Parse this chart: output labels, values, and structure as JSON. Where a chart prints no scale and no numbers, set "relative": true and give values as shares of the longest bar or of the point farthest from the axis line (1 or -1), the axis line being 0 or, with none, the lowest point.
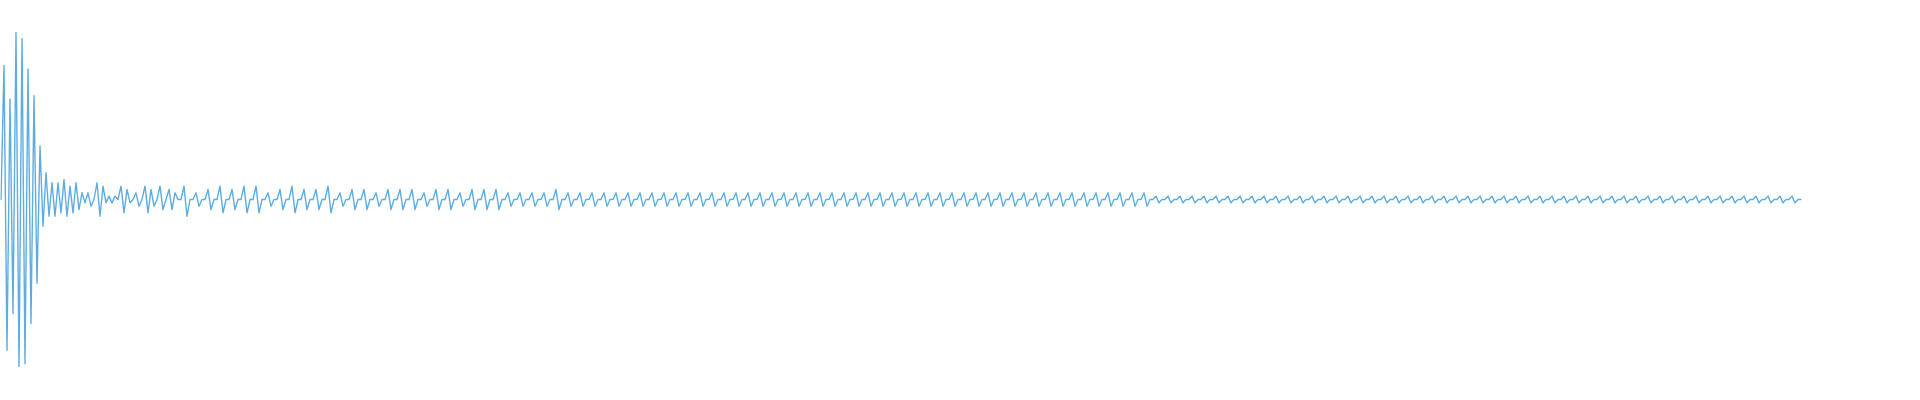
{
  "chart_data": {
    "type": "line",
    "relative": true,
    "marker": "none",
    "color": "#5dade2",
    "categories": [
      null,
      null,
      null,
      null,
      null,
      null,
      null,
      null,
      null,
      null,
      null,
      null,
      null,
      null,
      null,
      null,
      null,
      null,
      null,
      null,
      null,
      null,
      null,
      null,
      null,
      null,
      null,
      null,
      null,
      null,
      null,
      null,
      null,
      null,
      null,
      null,
      null,
      null,
      null,
      null,
      null,
      null,
      null,
      null,
      null,
      null,
      null,
      null,
      null,
      null,
      null,
      null,
      null,
      null,
      null,
      null,
      null,
      null,
      null,
      null,
      null,
      null,
      null,
      null,
      null,
      null,
      null,
      null,
      null,
      null,
      null,
      null,
      null,
      null,
      null,
      null,
      null,
      null,
      null,
      null,
      null,
      null,
      null,
      null,
      null,
      null,
      null,
      null,
      null,
      null,
      null,
      null,
      null,
      null,
      null,
      null,
      null,
      null,
      null,
      null,
      null,
      null,
      null,
      null,
      null,
      null,
      null,
      null,
      null,
      null,
      null,
      null,
      null,
      null,
      null,
      null,
      null,
      null,
      null,
      null,
      null,
      null,
      null,
      null,
      null,
      null,
      null,
      null,
      null,
      null,
      null,
      null,
      null,
      null,
      null,
      null,
      null,
      null,
      null,
      null,
      null,
      null,
      null,
      null,
      null,
      null,
      null,
      null,
      null,
      null,
      null,
      null,
      null,
      null,
      null,
      null,
      null,
      null,
      null,
      null,
      null,
      null,
      null,
      null,
      null,
      null,
      null,
      null,
      null,
      null,
      null,
      null,
      null,
      null,
      null,
      null,
      null,
      null,
      null,
      null,
      null,
      null,
      null,
      null,
      null,
      null,
      null,
      null,
      null,
      null,
      null,
      null,
      null,
      null,
      null,
      null,
      null,
      null,
      null,
      null,
      null,
      null,
      null,
      null,
      null,
      null,
      null,
      null,
      null,
      null,
      null,
      null,
      null,
      null,
      null,
      null,
      null,
      null,
      null,
      null,
      null,
      null,
      null,
      null,
      null,
      null,
      null,
      null,
      null,
      null,
      null,
      null,
      null,
      null,
      null,
      null,
      null,
      null,
      null,
      null,
      null,
      null,
      null,
      null,
      null,
      null,
      null,
      null,
      null,
      null,
      null,
      null,
      null,
      null,
      null,
      null,
      null,
      null,
      null,
      null,
      null,
      null,
      null,
      null,
      null,
      null,
      null,
      null,
      null,
      null,
      null,
      null,
      null,
      null,
      null,
      null,
      null,
      null,
      null,
      null,
      null,
      null,
      null,
      null,
      null,
      null,
      null,
      null,
      null,
      null,
      null,
      null,
      null,
      null,
      null,
      null,
      null,
      null,
      null,
      null,
      null,
      null,
      null,
      null,
      null,
      null,
      null,
      null,
      null,
      null,
      null,
      null,
      null,
      null,
      null,
      null,
      null,
      null,
      null,
      null,
      null,
      null,
      null,
      null,
      null,
      null,
      null,
      null,
      null,
      null,
      null,
      null,
      null,
      null,
      null,
      null,
      null,
      null,
      null,
      null,
      null,
      null,
      null,
      null,
      null,
      null,
      null,
      null,
      null,
      null,
      null,
      null,
      null,
      null,
      null,
      null,
      null,
      null,
      null,
      null,
      null,
      null,
      null,
      null,
      null,
      null,
      null,
      null,
      null,
      null,
      null,
      null,
      null,
      null,
      null,
      null,
      null,
      null,
      null,
      null,
      null,
      null,
      null,
      null,
      null,
      null,
      null,
      null,
      null,
      null,
      null,
      null,
      null,
      null,
      null,
      null,
      null,
      null,
      null,
      null,
      null,
      null,
      null,
      null,
      null,
      null,
      null,
      null,
      null,
      null,
      null,
      null,
      null,
      null,
      null,
      null,
      null,
      null,
      null,
      null,
      null,
      null,
      null,
      null,
      null,
      null,
      null,
      null,
      null,
      null,
      null,
      null,
      null,
      null,
      null,
      null,
      null,
      null,
      null,
      null,
      null,
      null,
      null,
      null,
      null,
      null,
      null,
      null,
      null,
      null,
      null,
      null,
      null,
      null,
      null,
      null,
      null,
      null,
      null,
      null,
      null,
      null,
      null,
      null,
      null,
      null,
      null,
      null,
      null,
      null,
      null,
      null,
      null,
      null,
      null,
      null,
      null,
      null,
      null,
      null,
      null,
      null,
      null,
      null,
      null,
      null,
      null,
      null,
      null,
      null,
      null,
      null,
      null,
      null,
      null,
      null,
      null,
      null,
      null,
      null,
      null,
      null,
      null,
      null,
      null,
      null,
      null,
      null,
      null,
      null,
      null,
      null,
      null,
      null,
      null,
      null,
      null,
      null,
      null,
      null,
      null,
      null,
      null,
      null,
      null,
      null,
      null,
      null,
      null,
      null,
      null,
      null,
      null,
      null,
      null,
      null,
      null,
      null,
      null,
      null,
      null,
      null,
      null,
      null,
      null,
      null,
      null,
      null,
      null,
      null,
      null,
      null,
      null,
      null,
      null,
      null,
      null,
      null,
      null,
      null,
      null,
      null,
      null,
      null,
      null,
      null,
      null,
      null,
      null,
      null,
      null,
      null,
      null,
      null,
      null,
      null,
      null,
      null,
      null,
      null,
      null,
      null,
      null,
      null,
      null,
      null,
      null,
      null,
      null,
      null,
      null,
      null,
      null,
      null,
      null,
      null,
      null,
      null,
      null,
      null,
      null
    ],
    "values": [
      0.5,
      0.9,
      0.05,
      0.8,
      0.16,
      1,
      0,
      0.98,
      0.01,
      0.89,
      0.13,
      0.81,
      0.25,
      0.66,
      0.42,
      0.58,
      0.45,
      0.55,
      0.45,
      0.55,
      0.46,
      0.56,
      0.45,
      0.54,
      0.46,
      0.55,
      0.47,
      0.52,
      0.49,
      0.52,
      0.48,
      0.5,
      0.55,
      0.45,
      0.54,
      0.49,
      0.51,
      0.49,
      0.51,
      0.5,
      0.54,
      0.46,
      0.53,
      0.49,
      0.5,
      0.52,
      0.48,
      0.5,
      0.54,
      0.46,
      0.53,
      0.48,
      0.5,
      0.54,
      0.47,
      0.5,
      0.53,
      0.47,
      0.52,
      0.5,
      0.5,
      0.54,
      0.45,
      0.5,
      0.5,
      0.52,
      0.48,
      0.5,
      0.5,
      0.53,
      0.47,
      0.5,
      0.5,
      0.54,
      0.46,
      0.5,
      0.5,
      0.53,
      0.47,
      0.5,
      0.5,
      0.54,
      0.46,
      0.5,
      0.5,
      0.54,
      0.46,
      0.5,
      0.5,
      0.52,
      0.48,
      0.5,
      0.5,
      0.53,
      0.47,
      0.5,
      0.5,
      0.54,
      0.46,
      0.5,
      0.5,
      0.53,
      0.47,
      0.5,
      0.5,
      0.53,
      0.47,
      0.5,
      0.5,
      0.54,
      0.46,
      0.5,
      0.5,
      0.52,
      0.48,
      0.5,
      0.5,
      0.53,
      0.47,
      0.5,
      0.5,
      0.53,
      0.47,
      0.5,
      0.5,
      0.52,
      0.48,
      0.5,
      0.5,
      0.53,
      0.47,
      0.5,
      0.5,
      0.53,
      0.47,
      0.5,
      0.5,
      0.53,
      0.47,
      0.5,
      0.5,
      0.52,
      0.48,
      0.5,
      0.5,
      0.53,
      0.47,
      0.5,
      0.5,
      0.53,
      0.47,
      0.5,
      0.5,
      0.52,
      0.48,
      0.5,
      0.5,
      0.53,
      0.47,
      0.5,
      0.5,
      0.53,
      0.47,
      0.5,
      0.5,
      0.53,
      0.47,
      0.5,
      0.5,
      0.52,
      0.48,
      0.5,
      0.5,
      0.52,
      0.48,
      0.5,
      0.5,
      0.52,
      0.48,
      0.5,
      0.5,
      0.52,
      0.48,
      0.5,
      0.5,
      0.53,
      0.47,
      0.5,
      0.5,
      0.52,
      0.48,
      0.5,
      0.5,
      0.52,
      0.48,
      0.5,
      0.5,
      0.52,
      0.48,
      0.5,
      0.5,
      0.52,
      0.48,
      0.5,
      0.5,
      0.52,
      0.48,
      0.5,
      0.5,
      0.52,
      0.48,
      0.5,
      0.5,
      0.52,
      0.48,
      0.5,
      0.5,
      0.52,
      0.48,
      0.5,
      0.5,
      0.52,
      0.48,
      0.5,
      0.5,
      0.52,
      0.48,
      0.5,
      0.5,
      0.52,
      0.48,
      0.5,
      0.5,
      0.52,
      0.48,
      0.5,
      0.5,
      0.52,
      0.48,
      0.5,
      0.5,
      0.52,
      0.48,
      0.5,
      0.5,
      0.52,
      0.48,
      0.5,
      0.5,
      0.52,
      0.48,
      0.5,
      0.5,
      0.52,
      0.48,
      0.5,
      0.5,
      0.52,
      0.48,
      0.5,
      0.5,
      0.52,
      0.48,
      0.5,
      0.5,
      0.52,
      0.48,
      0.5,
      0.5,
      0.52,
      0.48,
      0.5,
      0.5,
      0.52,
      0.48,
      0.5,
      0.5,
      0.52,
      0.48,
      0.5,
      0.5,
      0.52,
      0.48,
      0.5,
      0.5,
      0.52,
      0.48,
      0.5,
      0.5,
      0.52,
      0.48,
      0.5,
      0.5,
      0.52,
      0.48,
      0.5,
      0.5,
      0.52,
      0.48,
      0.5,
      0.5,
      0.52,
      0.48,
      0.5,
      0.5,
      0.52,
      0.48,
      0.5,
      0.5,
      0.52,
      0.48,
      0.5,
      0.5,
      0.52,
      0.48,
      0.5,
      0.5,
      0.52,
      0.48,
      0.5,
      0.5,
      0.52,
      0.48,
      0.5,
      0.5,
      0.52,
      0.48,
      0.5,
      0.5,
      0.52,
      0.48,
      0.5,
      0.5,
      0.52,
      0.48,
      0.5,
      0.5,
      0.52,
      0.48,
      0.5,
      0.5,
      0.52,
      0.48,
      0.5,
      0.5,
      0.52,
      0.48,
      0.5,
      0.5,
      0.52,
      0.48,
      0.5,
      0.5,
      0.52,
      0.48,
      0.5,
      0.5,
      0.52,
      0.48,
      0.5,
      0.5,
      0.52,
      0.48,
      0.5,
      0.5,
      0.52,
      0.48,
      0.5,
      0.5,
      0.52,
      0.48,
      0.5,
      0.5,
      0.52,
      0.48,
      0.5,
      0.5,
      0.52,
      0.48,
      0.5,
      0.5,
      0.52,
      0.48,
      0.5,
      0.5,
      0.51,
      0.49,
      0.5,
      0.5,
      0.51,
      0.49,
      0.5,
      0.5,
      0.51,
      0.49,
      0.5,
      0.5,
      0.51,
      0.49,
      0.5,
      0.5,
      0.51,
      0.49,
      0.5,
      0.5,
      0.51,
      0.49,
      0.5,
      0.5,
      0.51,
      0.49,
      0.5,
      0.5,
      0.51,
      0.49,
      0.5,
      0.5,
      0.51,
      0.49,
      0.5,
      0.5,
      0.51,
      0.49,
      0.5,
      0.5,
      0.51,
      0.49,
      0.5,
      0.5,
      0.51,
      0.49,
      0.5,
      0.5,
      0.51,
      0.49,
      0.5,
      0.5,
      0.51,
      0.49,
      0.5,
      0.5,
      0.51,
      0.49,
      0.5,
      0.5,
      0.51,
      0.49,
      0.5,
      0.5,
      0.51,
      0.49,
      0.5,
      0.5,
      0.51,
      0.49,
      0.5,
      0.5,
      0.51,
      0.49,
      0.5,
      0.5,
      0.51,
      0.49,
      0.5,
      0.5,
      0.51,
      0.49,
      0.5,
      0.5,
      0.51,
      0.49,
      0.5,
      0.5,
      0.51,
      0.49,
      0.5,
      0.5,
      0.51,
      0.49,
      0.5,
      0.5,
      0.51,
      0.49,
      0.5,
      0.5,
      0.51,
      0.49,
      0.5,
      0.5,
      0.51,
      0.49,
      0.5,
      0.5,
      0.51,
      0.49,
      0.5,
      0.5,
      0.51,
      0.49,
      0.5,
      0.5,
      0.51,
      0.49,
      0.5,
      0.5,
      0.51,
      0.49,
      0.5,
      0.5,
      0.51,
      0.49,
      0.5,
      0.5,
      0.51,
      0.49,
      0.5,
      0.5,
      0.51,
      0.49,
      0.5,
      0.5,
      0.51,
      0.49,
      0.5,
      0.5,
      0.51,
      0.49,
      0.5,
      0.5,
      0.51,
      0.49,
      0.5,
      0.5,
      0.51,
      0.49,
      0.5,
      0.5,
      0.51,
      0.49,
      0.5,
      0.5,
      0.51,
      0.49,
      0.5,
      0.5,
      0.51,
      0.49,
      0.5,
      0.5,
      0.51,
      0.49,
      0.5,
      0.5,
      0.51,
      0.49,
      0.5,
      0.5,
      0.51,
      0.49,
      0.5,
      0.5,
      0.51,
      0.49,
      0.5,
      0.5,
      0.51,
      0.49,
      0.5,
      0.5,
      0.51,
      0.49,
      0.5,
      0.5,
      0.51,
      0.49,
      0.5,
      0.5,
      0.51,
      0.49,
      0.5,
      0.5,
      0.51,
      0.49,
      0.5,
      0.5,
      0.51,
      0.49,
      0.5,
      0.5,
      0.51,
      0.49,
      0.5,
      0.5,
      0.51,
      0.49,
      0.5,
      0.5,
      0.51,
      0.49,
      0.5,
      0.5
    ]
  }
}
